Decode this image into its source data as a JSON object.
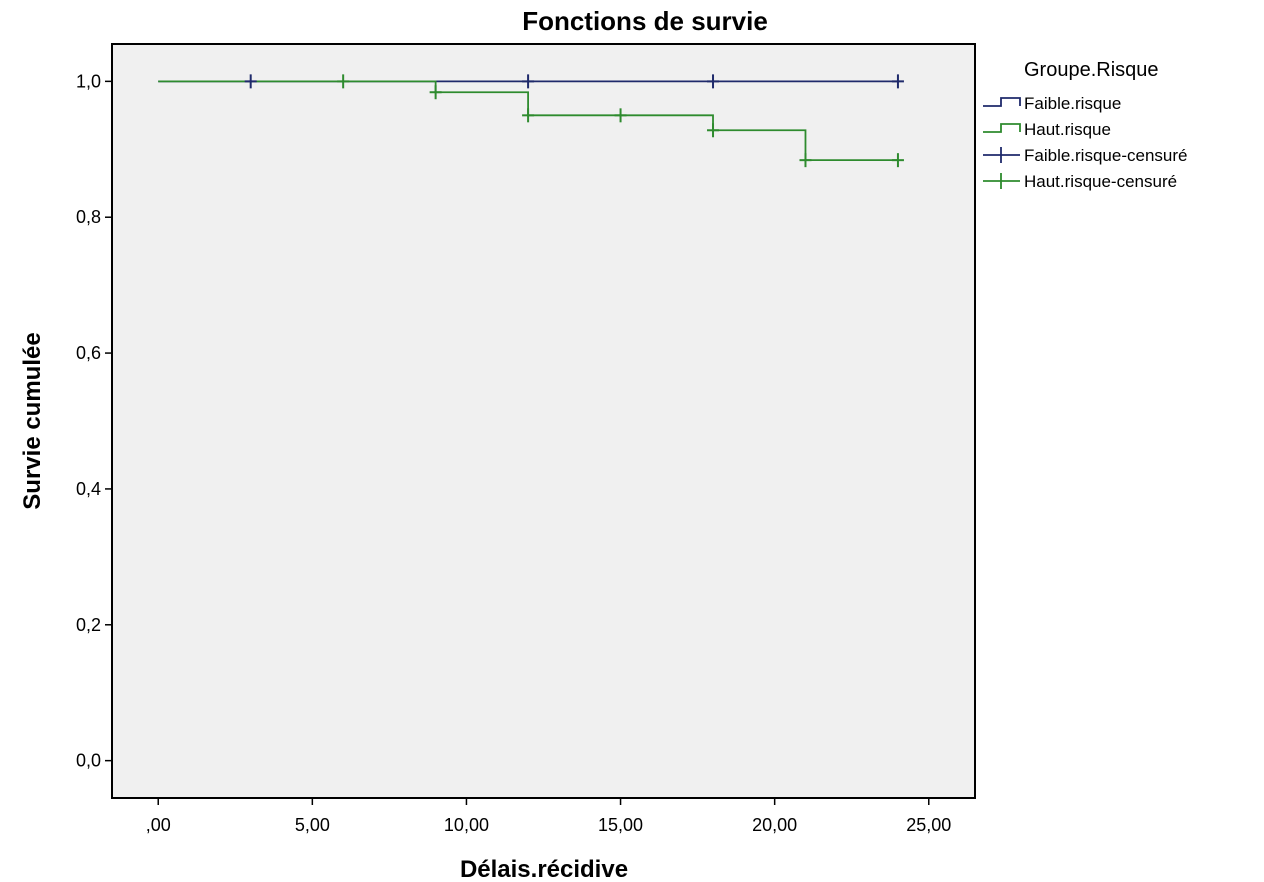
{
  "chart_data": {
    "type": "line",
    "subtype": "kaplan-meier-step",
    "title": "Fonctions de survie",
    "xlabel": "Délais.récidive",
    "ylabel": "Survie cumulée",
    "xlim": [
      -1.5,
      26.5
    ],
    "ylim": [
      -0.055,
      1.055
    ],
    "x_ticks": [
      0,
      5,
      10,
      15,
      20,
      25
    ],
    "x_tick_labels": [
      ",00",
      "5,00",
      "10,00",
      "15,00",
      "20,00",
      "25,00"
    ],
    "y_ticks": [
      0.0,
      0.2,
      0.4,
      0.6,
      0.8,
      1.0
    ],
    "y_tick_labels": [
      "0,0",
      "0,2",
      "0,4",
      "0,6",
      "0,8",
      "1,0"
    ],
    "grid": false,
    "plot_background": "#f0f0f0",
    "legend": {
      "title": "Groupe.Risque",
      "position": "right",
      "entries": [
        {
          "label": "Faible.risque",
          "kind": "step",
          "series": 0
        },
        {
          "label": "Haut.risque",
          "kind": "step",
          "series": 1
        },
        {
          "label": "Faible.risque-censuré",
          "kind": "censor",
          "series": 0
        },
        {
          "label": "Haut.risque-censuré",
          "kind": "censor",
          "series": 1
        }
      ]
    },
    "series": [
      {
        "name": "Faible.risque",
        "color": "#1f2a6b",
        "steps": [
          [
            0,
            1.0
          ],
          [
            24,
            1.0
          ]
        ],
        "censored": [
          [
            3,
            1.0
          ],
          [
            12,
            1.0
          ],
          [
            18,
            1.0
          ],
          [
            24,
            1.0
          ]
        ]
      },
      {
        "name": "Haut.risque",
        "color": "#2e8b2e",
        "steps": [
          [
            0,
            1.0
          ],
          [
            9,
            0.984
          ],
          [
            12,
            0.95
          ],
          [
            18,
            0.928
          ],
          [
            21,
            0.884
          ],
          [
            24,
            0.884
          ]
        ],
        "censored": [
          [
            6,
            1.0
          ],
          [
            9,
            0.984
          ],
          [
            12,
            0.95
          ],
          [
            15,
            0.95
          ],
          [
            18,
            0.928
          ],
          [
            21,
            0.884
          ],
          [
            24,
            0.884
          ]
        ]
      }
    ]
  }
}
